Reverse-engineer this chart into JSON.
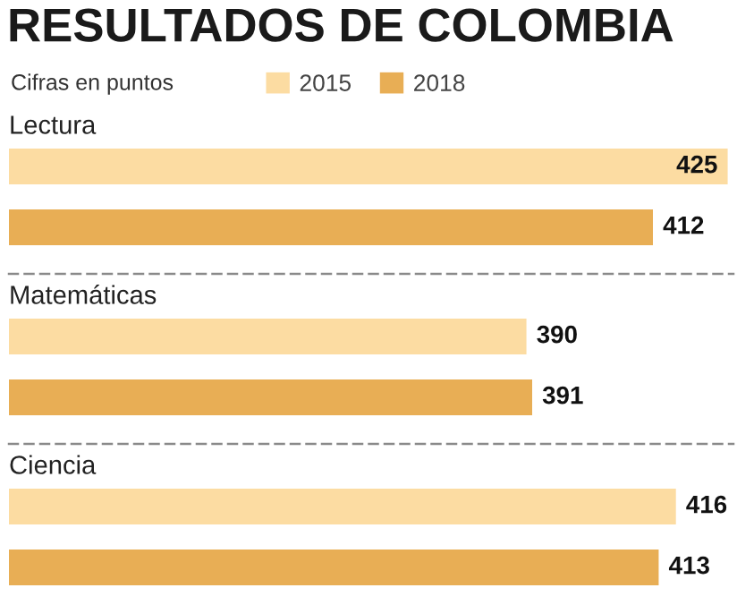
{
  "chart_data": [
    {
      "type": "bar",
      "orientation": "horizontal",
      "title": "RESULTADOS DE COLOMBIA",
      "subtitle": "Cifras en puntos",
      "categories": [
        "Lectura"
      ],
      "series": [
        {
          "name": "2015",
          "color": "#fcdca2",
          "values": [
            425
          ]
        },
        {
          "name": "2018",
          "color": "#e8ae55",
          "values": [
            412
          ]
        }
      ],
      "xlim": [
        300,
        426
      ],
      "data_labels": true,
      "legend": "top"
    },
    {
      "type": "bar",
      "orientation": "horizontal",
      "categories": [
        "Matemáticas"
      ],
      "series": [
        {
          "color": "#fcdca2",
          "values": [
            390
          ]
        },
        {
          "color": "#e8ae55",
          "values": [
            391
          ]
        }
      ],
      "xlim": [
        300,
        426
      ],
      "data_labels": true
    },
    {
      "type": "bar",
      "orientation": "horizontal",
      "categories": [
        "Ciencia"
      ],
      "series": [
        {
          "color": "#fcdca2",
          "values": [
            416
          ]
        },
        {
          "color": "#e8ae55",
          "values": [
            413
          ]
        }
      ],
      "xlim": [
        300,
        426
      ],
      "data_labels": true
    }
  ]
}
